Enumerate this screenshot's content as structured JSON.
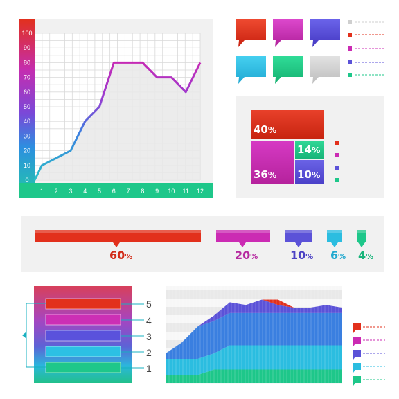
{
  "colors": {
    "red": "#e2301c",
    "magenta": "#cb2bb3",
    "indigo": "#5b52d8",
    "cyan": "#2bbde0",
    "green": "#1ec78a",
    "gray": "#cfcfcf",
    "purple": "#9a3bd1",
    "blue": "#3a7fe0"
  },
  "chart_data": [
    {
      "type": "line",
      "x": [
        1,
        2,
        3,
        4,
        5,
        6,
        7,
        8,
        9,
        10,
        11,
        12
      ],
      "y": [
        10,
        15,
        20,
        40,
        50,
        80,
        80,
        80,
        70,
        70,
        60,
        80
      ],
      "xlim": [
        0.5,
        12
      ],
      "ylim": [
        0,
        100
      ],
      "x_ticks": [
        "1",
        "2",
        "3",
        "4",
        "5",
        "6",
        "7",
        "8",
        "9",
        "10",
        "11",
        "12"
      ],
      "y_ticks": [
        "0",
        "10",
        "20",
        "30",
        "40",
        "50",
        "60",
        "70",
        "80",
        "90",
        "100"
      ],
      "grid": true
    },
    {
      "type": "treemap",
      "values": [
        40,
        36,
        14,
        10
      ],
      "labels": [
        "40",
        "36",
        "14",
        "10"
      ],
      "unit": "%"
    },
    {
      "type": "bar",
      "values": [
        60,
        20,
        10,
        6,
        4
      ],
      "labels": [
        "60",
        "20",
        "10",
        "6",
        "4"
      ],
      "unit": "%"
    },
    {
      "type": "area",
      "x": [
        0,
        1,
        2,
        3,
        4,
        5,
        6,
        7,
        8,
        9,
        10,
        11
      ],
      "series": [
        {
          "values": [
            3,
            3,
            3,
            5,
            5,
            5,
            5,
            5,
            5,
            5,
            5,
            5
          ]
        },
        {
          "values": [
            6,
            6,
            6,
            6,
            9,
            9,
            9,
            9,
            9,
            9,
            9,
            9
          ]
        },
        {
          "values": [
            2,
            6,
            12,
            12,
            12,
            12,
            12,
            12,
            12,
            12,
            12,
            12
          ]
        },
        {
          "values": [
            0,
            0,
            0,
            2,
            4,
            3,
            5,
            3,
            2,
            2,
            3,
            2
          ]
        },
        {
          "values": [
            0,
            0,
            0,
            0,
            0,
            0,
            0,
            2,
            0,
            0,
            0,
            0
          ]
        }
      ]
    }
  ],
  "list_numbers": [
    "5",
    "4",
    "3",
    "2",
    "1"
  ],
  "percent_sign": "%"
}
